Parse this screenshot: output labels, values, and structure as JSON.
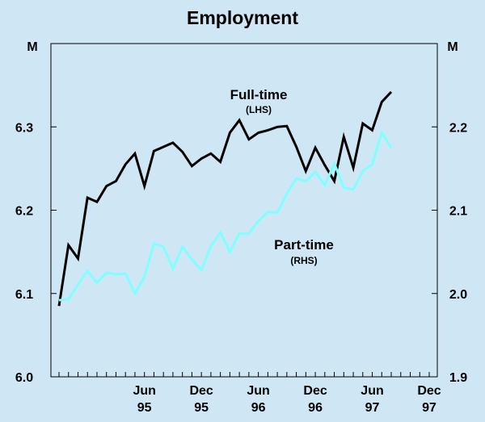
{
  "chart_data": {
    "type": "line",
    "title": "Employment",
    "left_unit": "M",
    "right_unit": "M",
    "left_axis": {
      "ylim": [
        6.0,
        6.4
      ],
      "ticks": [
        {
          "value": 6.0,
          "label": "6.0"
        },
        {
          "value": 6.1,
          "label": "6.1"
        },
        {
          "value": 6.2,
          "label": "6.2"
        },
        {
          "value": 6.3,
          "label": "6.3"
        }
      ]
    },
    "right_axis": {
      "ylim": [
        1.9,
        2.3
      ],
      "ticks": [
        {
          "value": 1.9,
          "label": "1.9"
        },
        {
          "value": 2.0,
          "label": "2.0"
        },
        {
          "value": 2.1,
          "label": "2.1"
        },
        {
          "value": 2.2,
          "label": "2.2"
        }
      ]
    },
    "x": [
      "Sep-94",
      "Oct-94",
      "Nov-94",
      "Dec-94",
      "Jan-95",
      "Feb-95",
      "Mar-95",
      "Apr-95",
      "May-95",
      "Jun-95",
      "Jul-95",
      "Aug-95",
      "Sep-95",
      "Oct-95",
      "Nov-95",
      "Dec-95",
      "Jan-96",
      "Feb-96",
      "Mar-96",
      "Apr-96",
      "May-96",
      "Jun-96",
      "Jul-96",
      "Aug-96",
      "Sep-96",
      "Oct-96",
      "Nov-96",
      "Dec-96",
      "Jan-97",
      "Feb-97",
      "Mar-97",
      "Apr-97",
      "May-97",
      "Jun-97",
      "Jul-97",
      "Aug-97",
      "Sep-97",
      "Oct-97",
      "Nov-97",
      "Dec-97"
    ],
    "x_ticks": [
      {
        "index": 9,
        "label": "Jun",
        "sub": "95"
      },
      {
        "index": 15,
        "label": "Dec",
        "sub": "95"
      },
      {
        "index": 21,
        "label": "Jun",
        "sub": "96"
      },
      {
        "index": 27,
        "label": "Dec",
        "sub": "96"
      },
      {
        "index": 33,
        "label": "Jun",
        "sub": "97"
      },
      {
        "index": 39,
        "label": "Dec",
        "sub": "97"
      }
    ],
    "series": [
      {
        "name": "Full-time",
        "axis_note": "(LHS)",
        "axis": "left",
        "color": "#000000",
        "values": [
          6.085,
          6.158,
          6.142,
          6.215,
          6.21,
          6.229,
          6.235,
          6.255,
          6.268,
          6.229,
          6.271,
          6.276,
          6.281,
          6.27,
          6.253,
          6.262,
          6.268,
          6.258,
          6.293,
          6.308,
          6.285,
          6.293,
          6.296,
          6.3,
          6.301,
          6.276,
          6.247,
          6.275,
          6.254,
          6.235,
          6.288,
          6.251,
          6.304,
          6.296,
          6.33,
          6.342,
          null,
          null,
          null,
          null
        ]
      },
      {
        "name": "Part-time",
        "axis_note": "(RHS)",
        "axis": "right",
        "color": "#80ffff",
        "values": [
          1.992,
          1.993,
          2.011,
          2.027,
          2.013,
          2.025,
          2.023,
          2.024,
          2.0,
          2.02,
          2.06,
          2.056,
          2.03,
          2.056,
          2.041,
          2.028,
          2.057,
          2.073,
          2.05,
          2.072,
          2.072,
          2.087,
          2.098,
          2.097,
          2.12,
          2.138,
          2.135,
          2.146,
          2.13,
          2.156,
          2.127,
          2.125,
          2.147,
          2.155,
          2.193,
          2.175,
          null,
          null,
          null,
          null
        ]
      }
    ],
    "grid": false,
    "legend": "inline"
  }
}
